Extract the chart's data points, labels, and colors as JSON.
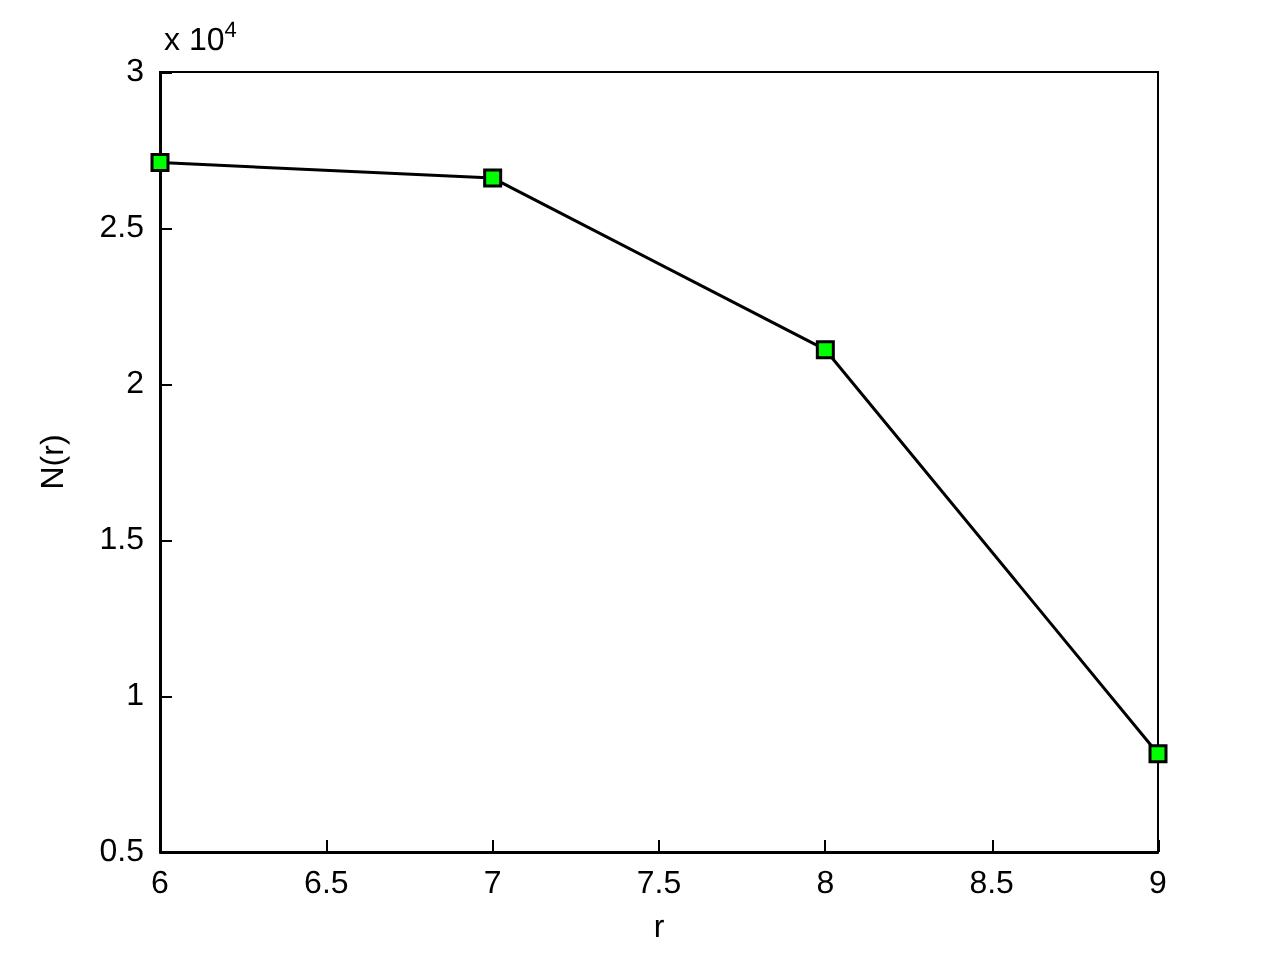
{
  "chart_data": {
    "type": "line",
    "xlabel": "r",
    "ylabel": "N(r)",
    "x": [
      6,
      7,
      8,
      9
    ],
    "series": [
      {
        "color": "#000000",
        "colors": [
          "#00ff00",
          "#00ff00",
          "#00ff00",
          "#00ff00"
        ],
        "values": [
          2.71,
          2.66,
          2.11,
          0.815
        ]
      }
    ],
    "xlim": [
      6,
      9
    ],
    "xticks": [
      6,
      6.5,
      7,
      7.5,
      8,
      8.5,
      9
    ],
    "ylim": [
      0.5,
      3
    ],
    "yticks": [
      0.5,
      1,
      1.5,
      2,
      2.5,
      3
    ],
    "annotations": [
      "x 10$^{4}$"
    ],
    "marker": "square",
    "line_style": "solid",
    "grid": false
  }
}
